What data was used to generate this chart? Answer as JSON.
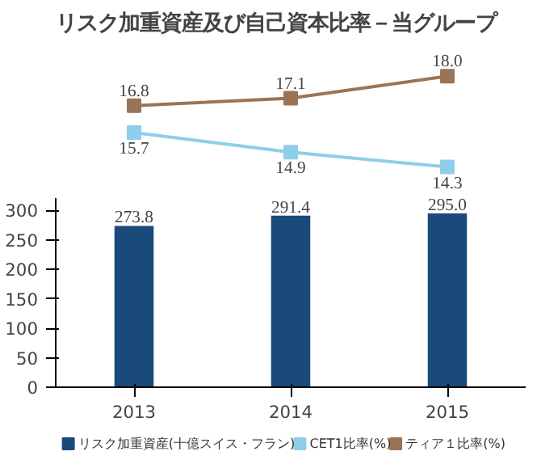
{
  "chart_data": [
    {
      "type": "line",
      "title": "リスク加重資産及び自己資本比率－当グループ",
      "categories": [
        null,
        null,
        null
      ],
      "tick_labels": false,
      "grid": false,
      "marker": "square",
      "line_style": "solid",
      "legend": "bottom",
      "series": [
        {
          "name": "CET1比率(%)",
          "color": "#8fcdea",
          "values": [
            15.7,
            14.9,
            14.3
          ],
          "value_labels": [
            "15.7",
            "14.9",
            "14.3"
          ]
        },
        {
          "name": "ティア１比率(%)",
          "color": "#9a7457",
          "values": [
            16.8,
            17.1,
            18.0
          ],
          "value_labels": [
            "16.8",
            "17.1",
            "18.0"
          ]
        }
      ]
    },
    {
      "type": "bar",
      "categories": [
        "2013",
        "2014",
        "2015"
      ],
      "ylim": [
        0,
        320
      ],
      "yticks": [
        0,
        50,
        100,
        150,
        200,
        250,
        300
      ],
      "grid": false,
      "legend": "bottom",
      "series": [
        {
          "name": "リスク加重資産(十億スイス・フラン)",
          "color": "#1a4a7a",
          "values": [
            273.8,
            291.4,
            295.0
          ],
          "value_labels": [
            "273.8",
            "291.4",
            "295.0"
          ]
        }
      ]
    }
  ]
}
